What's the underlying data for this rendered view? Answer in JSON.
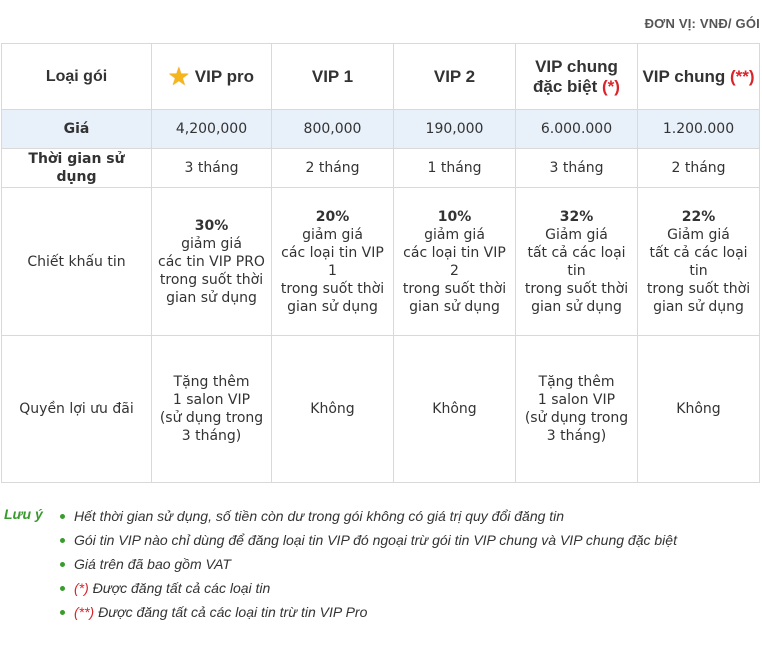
{
  "unit_note": "ĐƠN VỊ: VNĐ/ GÓI",
  "table": {
    "header": {
      "label": "Loại gói",
      "packages": [
        {
          "name": "VIP pro",
          "icon": "star-icon",
          "color": "#d9242a"
        },
        {
          "name": "VIP 1",
          "color": "#d9242a"
        },
        {
          "name": "VIP 2",
          "color": "#f0a21b"
        },
        {
          "name_line1": "VIP chung",
          "name_line2": "đặc biệt",
          "mark": "(*)",
          "color": "#2470b8"
        },
        {
          "name": "VIP chung",
          "mark": "(**)",
          "color": "#2470b8"
        }
      ]
    },
    "price": {
      "label": "Giá",
      "values": [
        "4,200,000",
        "800,000",
        "190,000",
        "6.000.000",
        "1.200.000"
      ]
    },
    "duration": {
      "label": "Thời gian sử dụng",
      "values": [
        "3 tháng",
        "2 tháng",
        "1 tháng",
        "3 tháng",
        "2 tháng"
      ]
    },
    "discount": {
      "label": "Chiết khấu tin",
      "values": [
        {
          "percent": "30%",
          "lines": [
            "giảm giá",
            "các tin VIP PRO",
            "trong suốt thời",
            "gian sử dụng"
          ]
        },
        {
          "percent": "20%",
          "lines": [
            "giảm giá",
            "các loại tin VIP 1",
            "trong suốt thời",
            "gian sử dụng"
          ]
        },
        {
          "percent": "10%",
          "lines": [
            "giảm giá",
            "các loại tin VIP 2",
            "trong suốt thời",
            "gian sử dụng"
          ]
        },
        {
          "percent": "32%",
          "lines": [
            "Giảm giá",
            "tất cả các loại tin",
            "trong suốt thời",
            "gian sử dụng"
          ]
        },
        {
          "percent": "22%",
          "lines": [
            "Giảm giá",
            "tất cả các loại tin",
            "trong suốt thời",
            "gian sử dụng"
          ]
        }
      ]
    },
    "benefit": {
      "label": "Quyền lợi ưu đãi",
      "values": [
        {
          "lines": [
            "Tặng thêm",
            "1 salon VIP",
            "(sử dụng trong",
            "3 tháng)"
          ]
        },
        {
          "lines": [
            "Không"
          ]
        },
        {
          "lines": [
            "Không"
          ]
        },
        {
          "lines": [
            "Tặng thêm",
            "1 salon VIP",
            "(sử dụng trong",
            "3 tháng)"
          ]
        },
        {
          "lines": [
            "Không"
          ]
        }
      ]
    }
  },
  "notes": {
    "title": "Lưu ý",
    "accent_color": "#3a9b2e",
    "items": [
      {
        "text": "Hết thời gian sử dụng, số tiền còn dư trong gói không có giá trị quy đổi đăng tin"
      },
      {
        "text": "Gói tin VIP nào chỉ dùng để đăng loại tin VIP đó ngoại trừ gói tin VIP chung và VIP chung đặc biệt"
      },
      {
        "text": "Giá trên đã bao gồm VAT"
      },
      {
        "mark": "(*)",
        "text": " Được đăng tất cả các loại tin"
      },
      {
        "mark": "(**)",
        "text": " Được đăng tất cả các loại tin trừ tin VIP Pro"
      }
    ]
  }
}
